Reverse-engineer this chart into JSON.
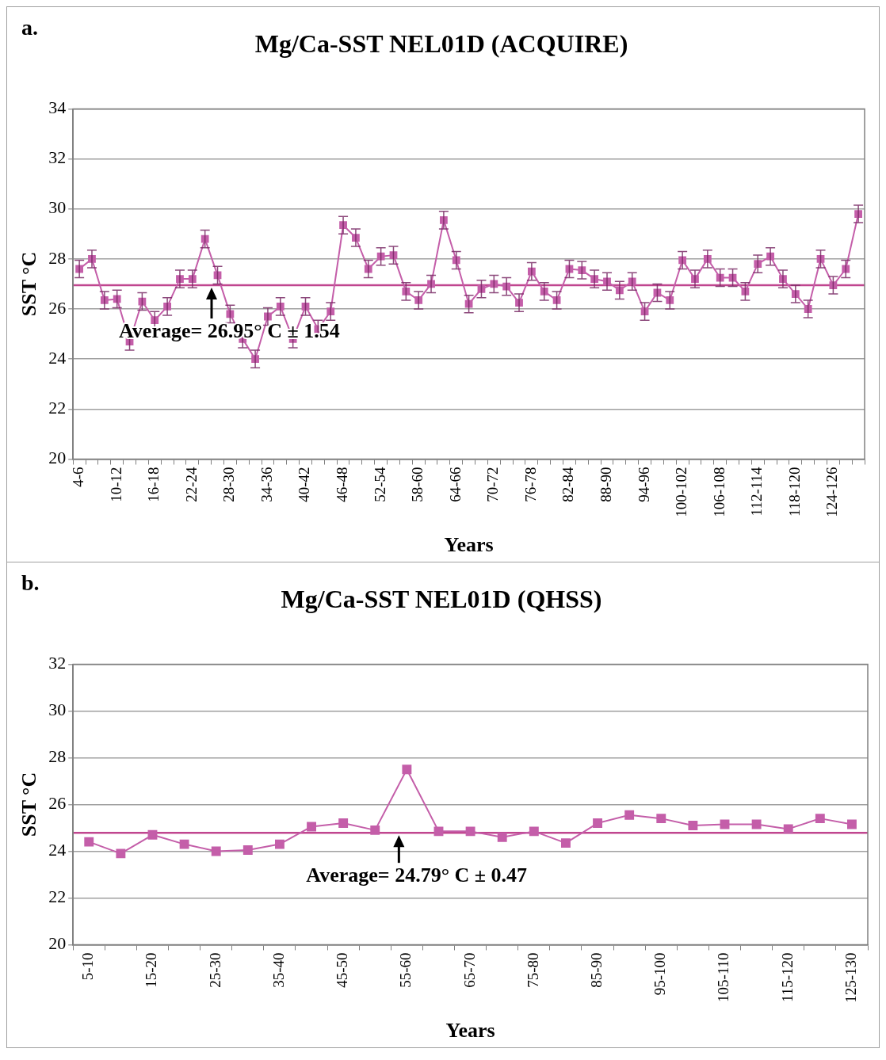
{
  "chart_data": [
    {
      "type": "line",
      "title": "Mg/Ca-SST NEL01D (ACQUIRE)",
      "xlabel": "Years",
      "ylabel": "SST °C",
      "annotations": [
        "a."
      ],
      "categories": [
        "4-6",
        null,
        null,
        "10-12",
        null,
        null,
        "16-18",
        null,
        null,
        "22-24",
        null,
        null,
        "28-30",
        null,
        null,
        "34-36",
        null,
        null,
        "40-42",
        null,
        null,
        "46-48",
        null,
        null,
        "52-54",
        null,
        null,
        "58-60",
        null,
        null,
        "64-66",
        null,
        null,
        "70-72",
        null,
        null,
        "76-78",
        null,
        null,
        "82-84",
        null,
        null,
        "88-90",
        null,
        null,
        "94-96",
        null,
        null,
        "100-102",
        null,
        null,
        "106-108",
        null,
        null,
        "112-114",
        null,
        null,
        "118-120",
        null,
        null,
        "124-126",
        null,
        null
      ],
      "series": [
        {
          "color": "#c45ea9",
          "values": [
            27.6,
            28.0,
            26.35,
            26.4,
            24.7,
            26.3,
            25.55,
            26.1,
            27.2,
            27.2,
            28.8,
            27.35,
            25.8,
            24.8,
            24.0,
            25.7,
            26.1,
            24.8,
            26.1,
            25.2,
            25.9,
            29.35,
            28.85,
            27.6,
            28.1,
            28.15,
            26.7,
            26.35,
            27.0,
            29.55,
            27.95,
            26.2,
            26.8,
            27.0,
            26.9,
            26.25,
            27.5,
            26.7,
            26.35,
            27.6,
            27.55,
            27.2,
            27.1,
            26.75,
            27.1,
            25.9,
            26.65,
            26.35,
            27.95,
            27.2,
            28.0,
            27.25,
            27.25,
            26.7,
            27.8,
            28.1,
            27.2,
            26.6,
            26.0,
            28.0,
            26.95,
            27.6,
            29.8
          ],
          "errors": [
            0.35,
            0.35,
            0.35,
            0.35,
            0.35,
            0.35,
            0.35,
            0.35,
            0.35,
            0.35,
            0.35,
            0.35,
            0.35,
            0.35,
            0.35,
            0.35,
            0.35,
            0.35,
            0.35,
            0.35,
            0.35,
            0.35,
            0.35,
            0.35,
            0.35,
            0.35,
            0.35,
            0.35,
            0.35,
            0.35,
            0.35,
            0.35,
            0.35,
            0.35,
            0.35,
            0.35,
            0.35,
            0.35,
            0.35,
            0.35,
            0.35,
            0.35,
            0.35,
            0.35,
            0.35,
            0.35,
            0.35,
            0.35,
            0.35,
            0.35,
            0.35,
            0.35,
            0.35,
            0.35,
            0.35,
            0.35,
            0.35,
            0.35,
            0.35,
            0.35,
            0.35,
            0.35,
            0.35
          ]
        }
      ],
      "ylim": [
        20,
        34
      ],
      "yticks": [
        20,
        22,
        24,
        26,
        28,
        30,
        32,
        34
      ],
      "grid": "y",
      "legend": false,
      "marker": "square",
      "line_style": "solid",
      "ref_lines": [
        {
          "axis": "y",
          "value": 26.95,
          "label": "Average= 26.95° C ± 1.54",
          "color": "#c0468f"
        }
      ]
    },
    {
      "type": "line",
      "title": "Mg/Ca-SST NEL01D (QHSS)",
      "xlabel": "Years",
      "ylabel": "SST °C",
      "annotations": [
        "b."
      ],
      "categories": [
        "5-10",
        null,
        "15-20",
        null,
        "25-30",
        null,
        "35-40",
        null,
        "45-50",
        null,
        "55-60",
        null,
        "65-70",
        null,
        "75-80",
        null,
        "85-90",
        null,
        "95-100",
        null,
        "105-110",
        null,
        "115-120",
        null,
        "125-130"
      ],
      "series": [
        {
          "color": "#c45ea9",
          "values": [
            24.4,
            23.9,
            24.7,
            24.3,
            24.0,
            24.05,
            24.3,
            25.05,
            25.2,
            24.9,
            27.5,
            24.85,
            24.85,
            24.6,
            24.85,
            24.35,
            25.2,
            25.55,
            25.4,
            25.1,
            25.15,
            25.15,
            24.95,
            25.4,
            25.15
          ]
        }
      ],
      "ylim": [
        20,
        32
      ],
      "yticks": [
        20,
        22,
        24,
        26,
        28,
        30,
        32
      ],
      "grid": "y",
      "legend": false,
      "marker": "square",
      "line_style": "solid",
      "ref_lines": [
        {
          "axis": "y",
          "value": 24.79,
          "label": "Average= 24.79° C ± 0.47",
          "color": "#c0468f"
        }
      ]
    }
  ]
}
